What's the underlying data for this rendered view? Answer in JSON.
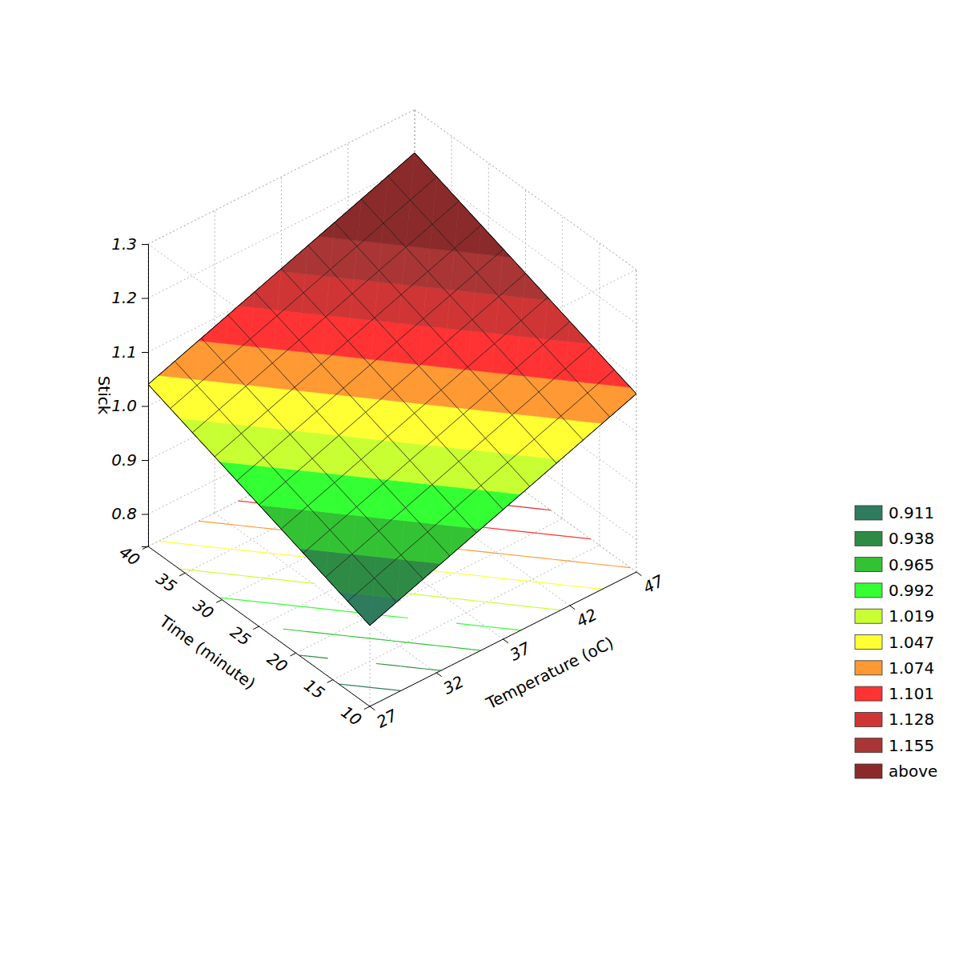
{
  "chart_data": {
    "type": "surface3d",
    "x_label": "Temperature (oC)",
    "y_label": "Time (minute)",
    "z_label": "Stick",
    "x": [
      27,
      29,
      31,
      33,
      35,
      37,
      39,
      41,
      43,
      45,
      47
    ],
    "y": [
      10,
      13,
      16,
      19,
      22,
      25,
      28,
      31,
      34,
      37,
      40
    ],
    "z": [
      [
        0.89,
        0.908,
        0.926,
        0.944,
        0.962,
        0.98,
        0.998,
        1.016,
        1.034,
        1.052,
        1.07
      ],
      [
        0.905,
        0.923,
        0.941,
        0.959,
        0.977,
        0.995,
        1.013,
        1.031,
        1.049,
        1.067,
        1.085
      ],
      [
        0.92,
        0.938,
        0.956,
        0.974,
        0.992,
        1.01,
        1.028,
        1.046,
        1.064,
        1.082,
        1.1
      ],
      [
        0.935,
        0.953,
        0.971,
        0.989,
        1.007,
        1.025,
        1.043,
        1.061,
        1.079,
        1.097,
        1.115
      ],
      [
        0.95,
        0.968,
        0.986,
        1.004,
        1.022,
        1.04,
        1.058,
        1.076,
        1.094,
        1.112,
        1.13
      ],
      [
        0.965,
        0.983,
        1.001,
        1.019,
        1.037,
        1.055,
        1.073,
        1.091,
        1.109,
        1.127,
        1.145
      ],
      [
        0.98,
        0.998,
        1.016,
        1.034,
        1.052,
        1.07,
        1.088,
        1.106,
        1.124,
        1.142,
        1.16
      ],
      [
        0.995,
        1.013,
        1.031,
        1.049,
        1.067,
        1.085,
        1.103,
        1.121,
        1.139,
        1.157,
        1.175
      ],
      [
        1.01,
        1.028,
        1.046,
        1.064,
        1.082,
        1.1,
        1.118,
        1.136,
        1.154,
        1.172,
        1.19
      ],
      [
        1.025,
        1.043,
        1.061,
        1.079,
        1.097,
        1.115,
        1.133,
        1.151,
        1.169,
        1.187,
        1.205
      ],
      [
        1.04,
        1.058,
        1.076,
        1.094,
        1.112,
        1.13,
        1.148,
        1.166,
        1.184,
        1.202,
        1.22
      ]
    ],
    "xlim": [
      27,
      47
    ],
    "xticks": [
      27,
      32,
      37,
      42,
      47
    ],
    "ylim": [
      10,
      40
    ],
    "yticks": [
      10,
      15,
      20,
      25,
      30,
      35,
      40
    ],
    "zlim": [
      0.74,
      1.3
    ],
    "zticks": [
      0.8,
      0.9,
      {
        "value": 1,
        "label": "1.0"
      },
      1.1,
      1.2,
      1.3
    ],
    "grid": true,
    "legend": "right",
    "color_levels": [
      0.911,
      0.938,
      0.965,
      0.992,
      1.019,
      1.047,
      1.074,
      1.101,
      1.128,
      1.155
    ],
    "color_above_label": "above",
    "colors": [
      "#2e7b5e",
      "#2e8b45",
      "#33c233",
      "#33ff33",
      "#c8ff33",
      "#ffff33",
      "#ff9933",
      "#ff3333",
      "#d03535",
      "#aa3535",
      "#8b2a2a"
    ]
  }
}
